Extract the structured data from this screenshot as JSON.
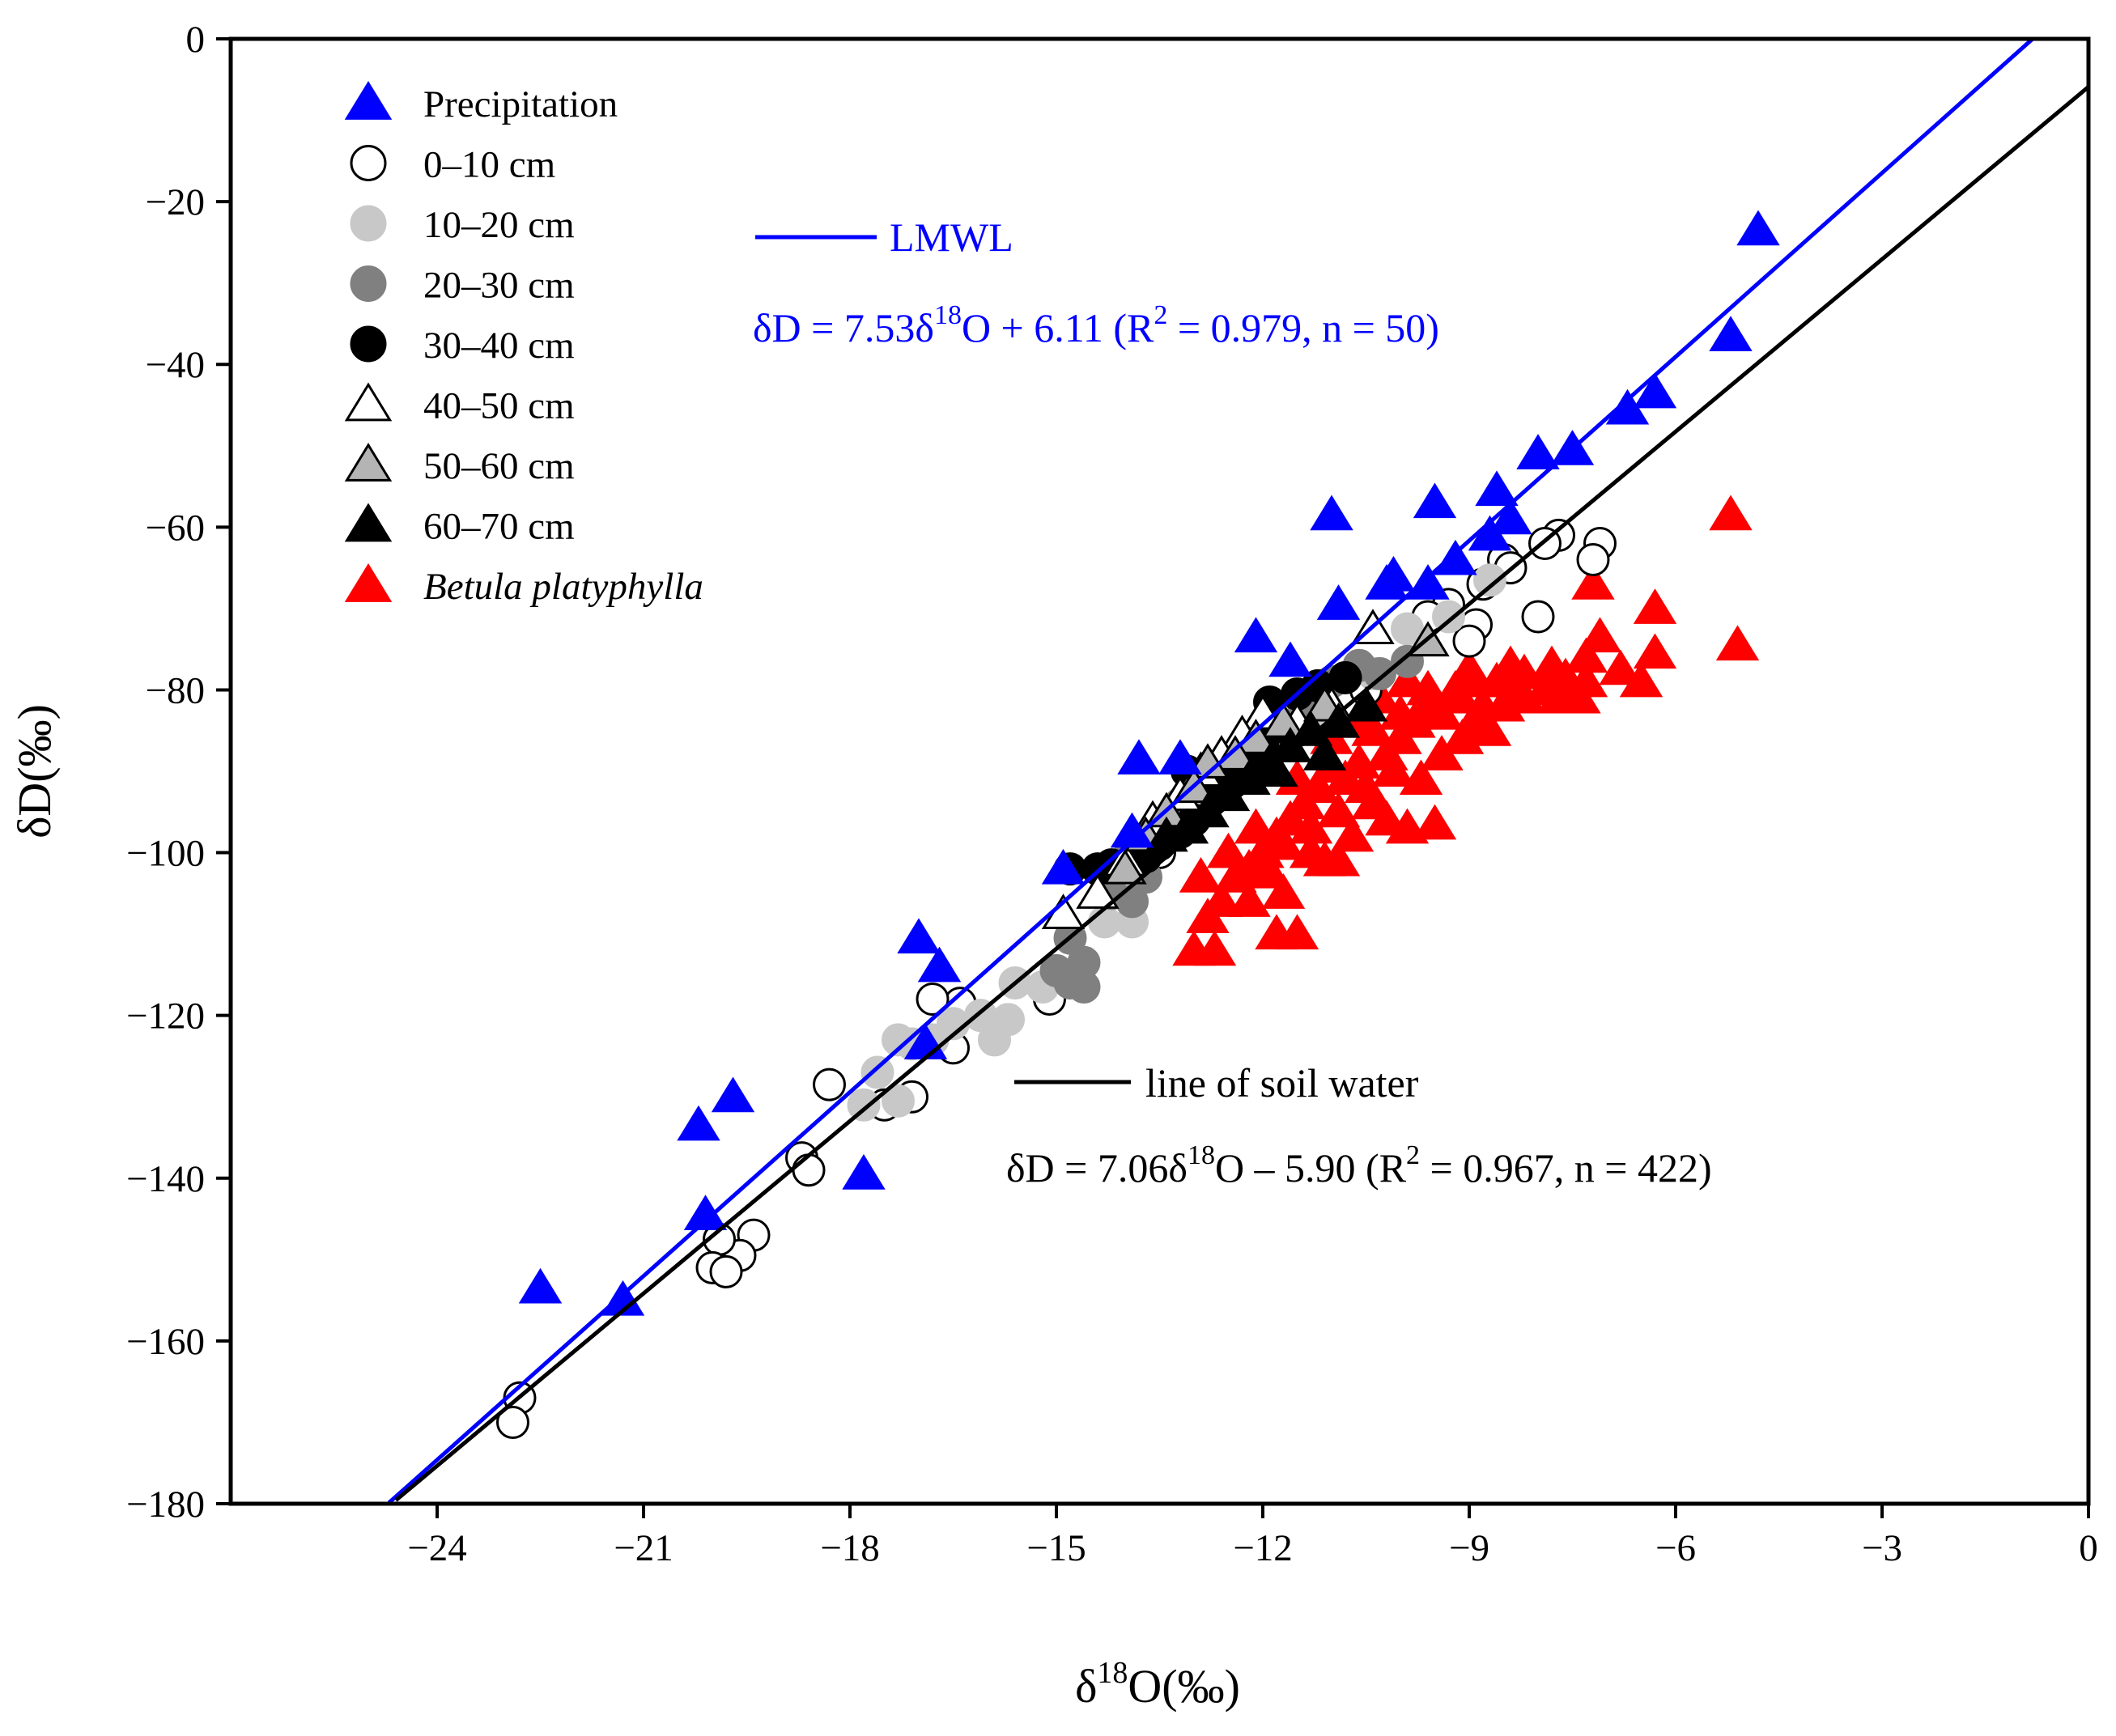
{
  "chart_data": {
    "type": "scatter",
    "title": "",
    "xlabel": {
      "main": "δ",
      "sup": "18",
      "rest": "O(‰)"
    },
    "ylabel": "δD(‰)",
    "xlim": [
      -27,
      0
    ],
    "ylim": [
      -180,
      0
    ],
    "xticks": [
      -24,
      -21,
      -18,
      -15,
      -12,
      -9,
      -6,
      -3,
      0
    ],
    "yticks": [
      0,
      -20,
      -40,
      -60,
      -80,
      -100,
      -120,
      -140,
      -160,
      -180
    ],
    "xtick_labels": [
      "−24",
      "−21",
      "−18",
      "−15",
      "−12",
      "−9",
      "−6",
      "−3",
      "0"
    ],
    "ytick_labels": [
      "0",
      "−20",
      "−40",
      "−60",
      "−80",
      "−100",
      "−120",
      "−140",
      "−160",
      "−180"
    ],
    "grid": false,
    "legend_position": "top-left",
    "series": [
      {
        "name": "Precipitation",
        "marker": "triangle",
        "fill": "#0000ff",
        "stroke": "#0000ff",
        "points": [
          [
            -4.8,
            -23.5
          ],
          [
            -5.2,
            -36.5
          ],
          [
            -6.3,
            -43.5
          ],
          [
            -6.7,
            -45.5
          ],
          [
            -7.5,
            -50.5
          ],
          [
            -8.0,
            -51
          ],
          [
            -8.6,
            -55.5
          ],
          [
            -8.4,
            -59
          ],
          [
            -8.7,
            -61
          ],
          [
            -9.5,
            -57
          ],
          [
            -9.2,
            -64
          ],
          [
            -9.6,
            -67
          ],
          [
            -10.1,
            -66
          ],
          [
            -10.2,
            -67
          ],
          [
            -11.0,
            -58.5
          ],
          [
            -10.9,
            -69.5
          ],
          [
            -12.1,
            -73.5
          ],
          [
            -11.6,
            -76.5
          ],
          [
            -13.8,
            -88.5
          ],
          [
            -13.2,
            -88.5
          ],
          [
            -13.9,
            -97.5
          ],
          [
            -14.9,
            -102
          ],
          [
            -17.0,
            -110.5
          ],
          [
            -16.7,
            -114
          ],
          [
            -16.9,
            -123.5
          ],
          [
            -17.8,
            -139.5
          ],
          [
            -19.7,
            -130
          ],
          [
            -20.2,
            -133.5
          ],
          [
            -20.1,
            -144.5
          ],
          [
            -21.3,
            -155
          ],
          [
            -22.5,
            -153.5
          ]
        ]
      },
      {
        "name": "0–10 cm",
        "marker": "circle",
        "fill": "#ffffff",
        "stroke": "#000000",
        "points": [
          [
            -7.1,
            -62
          ],
          [
            -7.2,
            -64
          ],
          [
            -7.7,
            -61
          ],
          [
            -7.9,
            -62
          ],
          [
            -8.5,
            -64
          ],
          [
            -8.4,
            -65
          ],
          [
            -8.8,
            -67
          ],
          [
            -8.9,
            -72
          ],
          [
            -8.0,
            -71
          ],
          [
            -9.0,
            -74
          ],
          [
            -9.3,
            -69.5
          ],
          [
            -9.6,
            -71
          ],
          [
            -10.5,
            -80
          ],
          [
            -11.5,
            -85
          ],
          [
            -12.6,
            -91
          ],
          [
            -13.5,
            -100
          ],
          [
            -14.0,
            -104
          ],
          [
            -15.1,
            -118
          ],
          [
            -16.4,
            -118.5
          ],
          [
            -16.8,
            -118
          ],
          [
            -16.5,
            -124
          ],
          [
            -17.1,
            -130
          ],
          [
            -17.5,
            -131
          ],
          [
            -18.3,
            -128.5
          ],
          [
            -18.7,
            -137.5
          ],
          [
            -18.6,
            -139
          ],
          [
            -19.4,
            -147
          ],
          [
            -19.6,
            -149.5
          ],
          [
            -19.9,
            -147.5
          ],
          [
            -20.0,
            -151
          ],
          [
            -19.8,
            -151.5
          ],
          [
            -22.8,
            -167
          ],
          [
            -22.9,
            -170
          ]
        ]
      },
      {
        "name": "10–20 cm",
        "marker": "circle",
        "fill": "#c8c8c8",
        "stroke": "#c8c8c8",
        "points": [
          [
            -8.7,
            -66.5
          ],
          [
            -9.3,
            -71
          ],
          [
            -9.9,
            -72.5
          ],
          [
            -10.4,
            -78
          ],
          [
            -11.1,
            -83
          ],
          [
            -11.8,
            -86
          ],
          [
            -12.2,
            -87
          ],
          [
            -12.5,
            -90
          ],
          [
            -13.0,
            -93
          ],
          [
            -13.6,
            -99
          ],
          [
            -14.1,
            -103
          ],
          [
            -14.3,
            -108.5
          ],
          [
            -13.9,
            -108.5
          ],
          [
            -15.6,
            -116
          ],
          [
            -15.2,
            -116.5
          ],
          [
            -15.7,
            -120.5
          ],
          [
            -15.9,
            -123
          ],
          [
            -16.1,
            -120
          ],
          [
            -16.5,
            -121
          ],
          [
            -16.8,
            -123
          ],
          [
            -17.1,
            -123.5
          ],
          [
            -17.3,
            -123
          ],
          [
            -17.6,
            -127
          ],
          [
            -17.3,
            -130.5
          ],
          [
            -17.8,
            -131
          ]
        ]
      },
      {
        "name": "20–30 cm",
        "marker": "circle",
        "fill": "#808080",
        "stroke": "#808080",
        "points": [
          [
            -9.9,
            -76.5
          ],
          [
            -10.3,
            -78
          ],
          [
            -10.6,
            -77
          ],
          [
            -11.0,
            -79
          ],
          [
            -11.4,
            -82
          ],
          [
            -11.9,
            -84
          ],
          [
            -12.3,
            -87
          ],
          [
            -12.8,
            -91
          ],
          [
            -13.2,
            -94
          ],
          [
            -13.5,
            -97
          ],
          [
            -13.8,
            -98.5
          ],
          [
            -14.0,
            -101
          ],
          [
            -13.7,
            -103
          ],
          [
            -14.2,
            -105
          ],
          [
            -13.9,
            -106
          ],
          [
            -14.8,
            -110.5
          ],
          [
            -14.6,
            -113.5
          ],
          [
            -14.6,
            -116.5
          ],
          [
            -14.8,
            -116
          ],
          [
            -15.0,
            -114.5
          ]
        ]
      },
      {
        "name": "30–40 cm",
        "marker": "circle",
        "fill": "#000000",
        "stroke": "#000000",
        "points": [
          [
            -10.8,
            -78.5
          ],
          [
            -11.2,
            -79.5
          ],
          [
            -11.5,
            -80.5
          ],
          [
            -11.9,
            -81.5
          ],
          [
            -11.6,
            -85
          ],
          [
            -12.0,
            -86.5
          ],
          [
            -12.2,
            -88
          ],
          [
            -12.4,
            -90
          ],
          [
            -12.8,
            -92
          ],
          [
            -13.1,
            -90
          ],
          [
            -13.0,
            -96
          ],
          [
            -13.2,
            -97.5
          ],
          [
            -13.5,
            -99
          ],
          [
            -13.7,
            -100.5
          ],
          [
            -13.9,
            -101
          ],
          [
            -14.2,
            -101.5
          ],
          [
            -14.4,
            -102
          ],
          [
            -14.8,
            -102
          ]
        ]
      },
      {
        "name": "40–50 cm",
        "marker": "triangle",
        "fill": "#ffffff",
        "stroke": "#000000",
        "points": [
          [
            -10.4,
            -72.5
          ],
          [
            -11.0,
            -82
          ],
          [
            -11.5,
            -84
          ],
          [
            -12.0,
            -83
          ],
          [
            -12.3,
            -85.5
          ],
          [
            -12.6,
            -88
          ],
          [
            -12.9,
            -90
          ],
          [
            -13.2,
            -93
          ],
          [
            -13.6,
            -96
          ],
          [
            -14.0,
            -101
          ],
          [
            -14.4,
            -105
          ],
          [
            -14.9,
            -107.5
          ]
        ]
      },
      {
        "name": "50–60 cm",
        "marker": "triangle",
        "fill": "#b4b4b4",
        "stroke": "#000000",
        "points": [
          [
            -9.6,
            -74
          ],
          [
            -11.1,
            -82
          ],
          [
            -11.7,
            -84
          ],
          [
            -12.1,
            -86
          ],
          [
            -12.4,
            -88
          ],
          [
            -12.8,
            -89
          ],
          [
            -13.0,
            -92
          ],
          [
            -13.4,
            -95
          ],
          [
            -13.7,
            -98
          ],
          [
            -14.0,
            -102
          ]
        ]
      },
      {
        "name": "60–70 cm",
        "marker": "triangle",
        "fill": "#000000",
        "stroke": "#000000",
        "points": [
          [
            -10.5,
            -82
          ],
          [
            -10.9,
            -84
          ],
          [
            -11.3,
            -85
          ],
          [
            -11.6,
            -87
          ],
          [
            -11.9,
            -89
          ],
          [
            -12.2,
            -91
          ],
          [
            -12.5,
            -93
          ],
          [
            -12.8,
            -95
          ],
          [
            -13.1,
            -97
          ],
          [
            -13.4,
            -98
          ],
          [
            -11.1,
            -88
          ],
          [
            -11.8,
            -90
          ]
        ]
      },
      {
        "name": "Betula platyphylla",
        "italic": true,
        "marker": "triangle",
        "fill": "#ff0000",
        "stroke": "#ff0000",
        "points": [
          [
            -5.2,
            -58.5
          ],
          [
            -5.1,
            -74.5
          ],
          [
            -6.3,
            -70
          ],
          [
            -6.3,
            -75.5
          ],
          [
            -6.5,
            -79
          ],
          [
            -6.8,
            -77.5
          ],
          [
            -7.2,
            -67
          ],
          [
            -7.1,
            -73.5
          ],
          [
            -7.3,
            -79
          ],
          [
            -7.4,
            -81
          ],
          [
            -7.7,
            -81
          ],
          [
            -7.9,
            -80
          ],
          [
            -8.2,
            -81
          ],
          [
            -8.4,
            -80.5
          ],
          [
            -8.6,
            -79
          ],
          [
            -8.8,
            -82
          ],
          [
            -9.0,
            -78
          ],
          [
            -9.2,
            -80
          ],
          [
            -9.4,
            -83
          ],
          [
            -9.6,
            -82
          ],
          [
            -9.8,
            -84
          ],
          [
            -10.0,
            -86
          ],
          [
            -10.2,
            -88
          ],
          [
            -10.4,
            -85
          ],
          [
            -10.6,
            -89
          ],
          [
            -10.8,
            -91
          ],
          [
            -11.0,
            -89.5
          ],
          [
            -11.2,
            -92
          ],
          [
            -11.4,
            -94
          ],
          [
            -11.6,
            -96
          ],
          [
            -11.8,
            -98
          ],
          [
            -12.0,
            -100
          ],
          [
            -12.2,
            -102
          ],
          [
            -12.4,
            -103
          ],
          [
            -12.6,
            -106
          ],
          [
            -12.8,
            -108
          ],
          [
            -13.0,
            -112
          ],
          [
            -12.7,
            -112
          ],
          [
            -12.2,
            -106
          ],
          [
            -11.8,
            -110
          ],
          [
            -11.5,
            -110
          ],
          [
            -11.7,
            -105
          ],
          [
            -11.9,
            -102.5
          ],
          [
            -11.3,
            -100
          ],
          [
            -11.1,
            -101
          ],
          [
            -10.9,
            -101
          ],
          [
            -10.7,
            -98
          ],
          [
            -10.4,
            -94
          ],
          [
            -10.2,
            -96
          ],
          [
            -9.9,
            -97
          ],
          [
            -9.5,
            -96.5
          ],
          [
            -9.4,
            -88
          ],
          [
            -9.1,
            -86
          ],
          [
            -8.9,
            -84
          ],
          [
            -8.7,
            -85
          ],
          [
            -8.5,
            -82
          ],
          [
            -9.7,
            -91
          ],
          [
            -10.1,
            -90
          ],
          [
            -10.5,
            -92
          ],
          [
            -10.9,
            -95
          ],
          [
            -11.3,
            -97
          ],
          [
            -11.7,
            -99
          ],
          [
            -12.1,
            -97
          ],
          [
            -12.5,
            -100
          ],
          [
            -12.9,
            -103
          ],
          [
            -11.5,
            -91
          ],
          [
            -11.0,
            -86
          ],
          [
            -10.6,
            -84
          ],
          [
            -10.0,
            -83
          ],
          [
            -9.6,
            -80
          ],
          [
            -9.2,
            -81
          ],
          [
            -8.9,
            -79
          ],
          [
            -8.2,
            -78
          ],
          [
            -7.6,
            -78.5
          ],
          [
            -7.3,
            -76
          ],
          [
            -7.8,
            -77
          ],
          [
            -10.3,
            -81
          ],
          [
            -9.9,
            -79
          ],
          [
            -8.4,
            -77
          ],
          [
            -9.0,
            -77.5
          ]
        ]
      }
    ],
    "lines": [
      {
        "name": "LMWL",
        "slope": 7.53,
        "intercept": 6.11,
        "x_range": [
          -24.7,
          -0.81
        ],
        "color": "#0000ff"
      },
      {
        "name": "line of soil water",
        "slope": 7.06,
        "intercept": -5.9,
        "x_range": [
          -24.6,
          0
        ],
        "color": "#000000"
      }
    ],
    "annotations": {
      "lmwl_label": "LMWL",
      "lmwl_eq_a": "δD = 7.53δ",
      "lmwl_eq_sup": "18",
      "lmwl_eq_b": "O + 6.11 (R",
      "lmwl_eq_sup2": "2",
      "lmwl_eq_c": " = 0.979, n = 50)",
      "soil_label": "line of soil water",
      "soil_eq_a": "δD = 7.06δ",
      "soil_eq_sup": "18",
      "soil_eq_b": "O – 5.90 (R",
      "soil_eq_sup2": "2",
      "soil_eq_c": " = 0.967, n = 422)"
    }
  }
}
